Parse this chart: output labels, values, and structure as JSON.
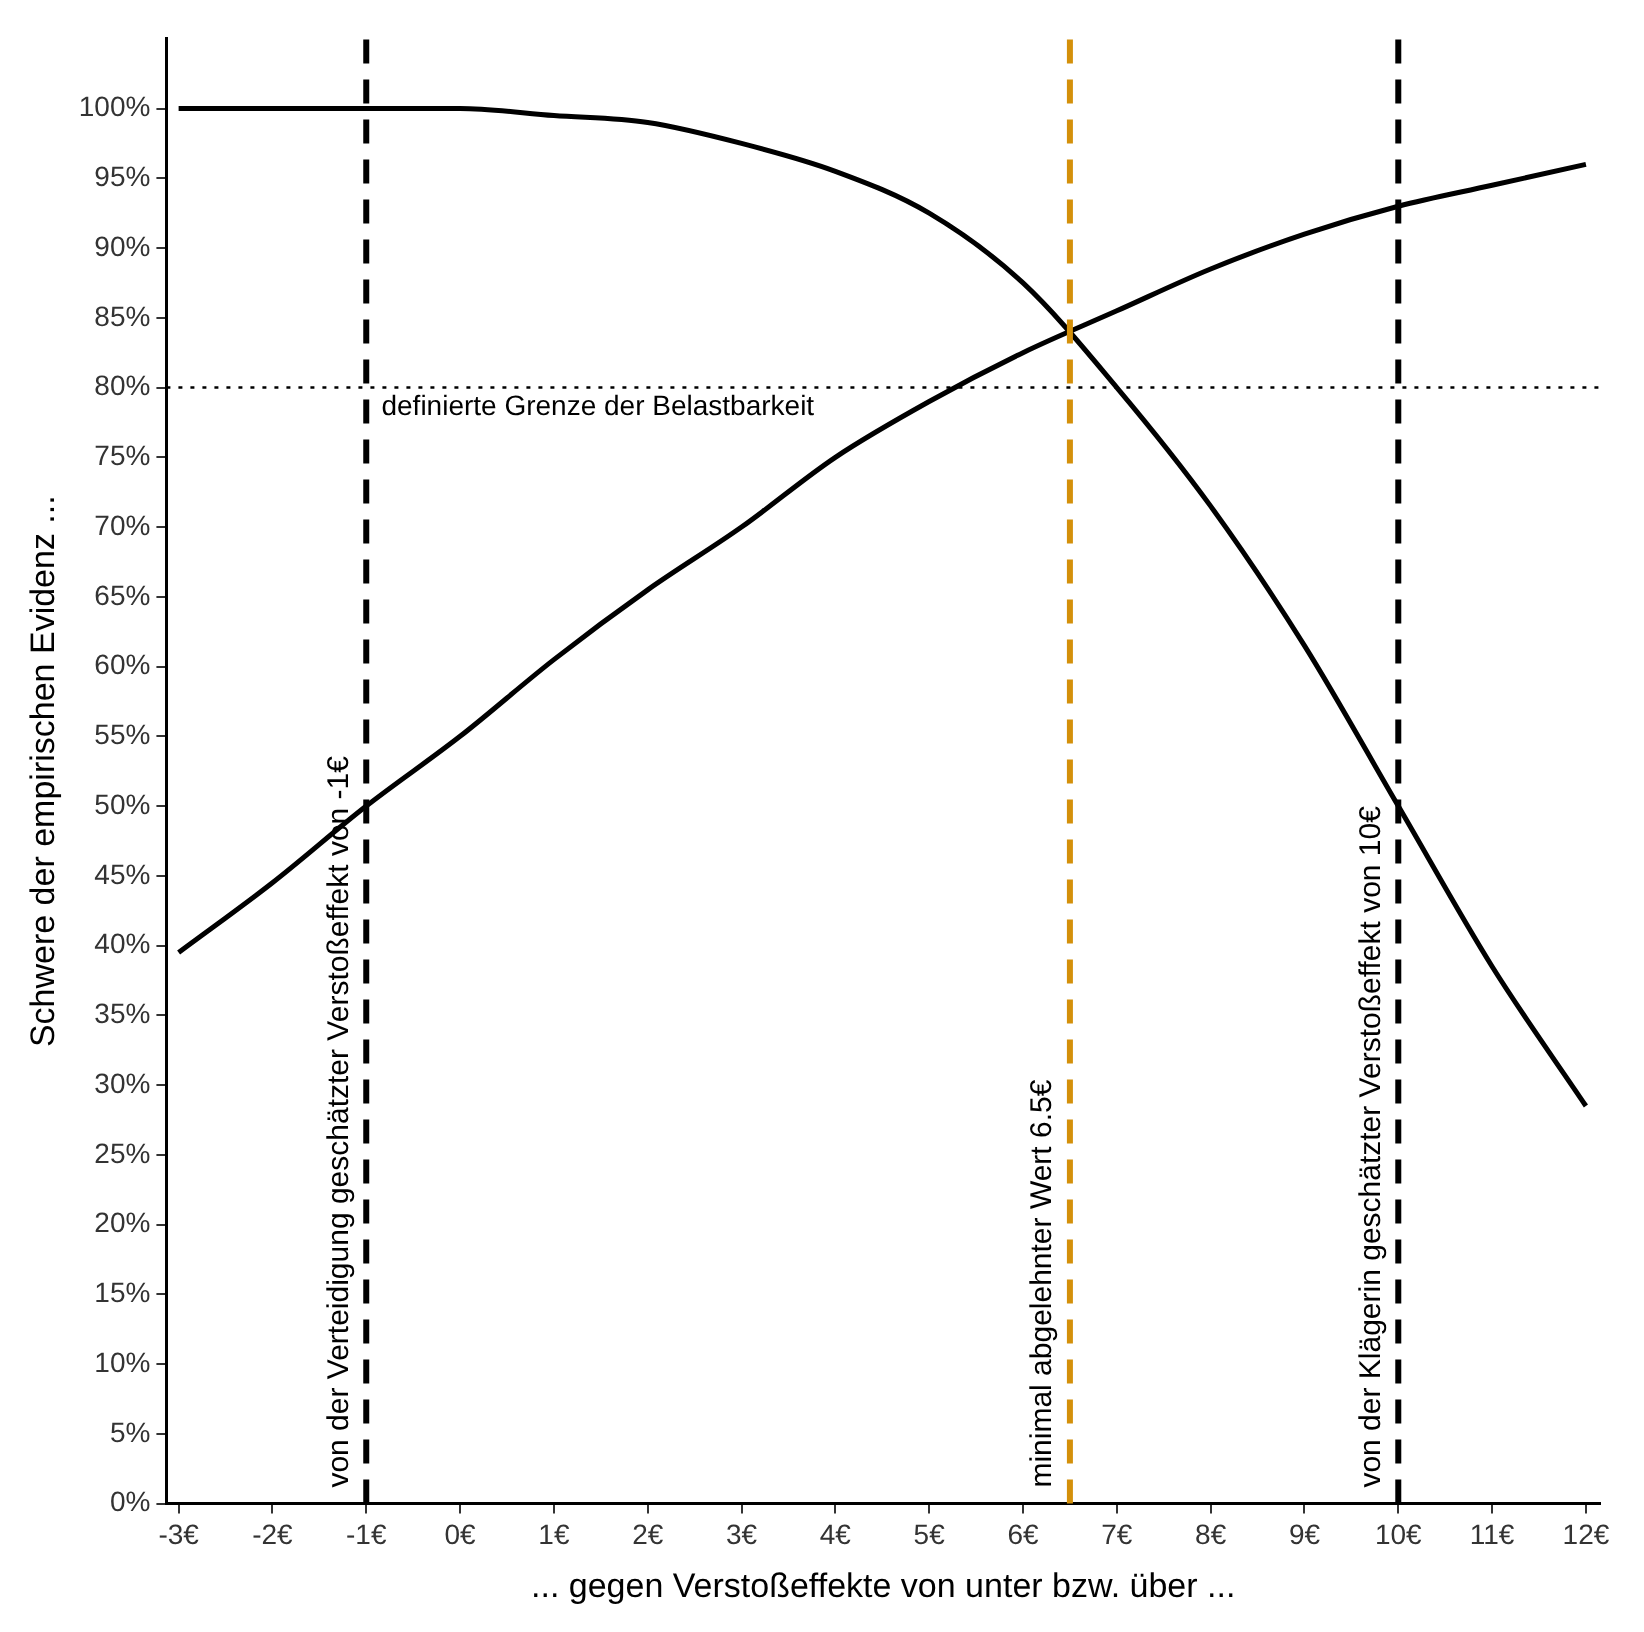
{
  "chart_data": {
    "type": "line",
    "xlabel": "... gegen Verstoßeffekte von unter bzw. über ...",
    "ylabel": "Schwere der empirischen Evidenz ...",
    "x": [
      -3,
      -2,
      -1,
      0,
      1,
      2,
      3,
      4,
      5,
      6,
      7,
      8,
      9,
      10,
      11,
      12
    ],
    "series": [
      {
        "color": "#000000",
        "values": [
          39.5,
          44.5,
          50,
          55,
          60.5,
          65.5,
          70,
          75,
          79,
          82.5,
          85.5,
          88.5,
          91,
          93,
          94.5,
          96
        ]
      },
      {
        "color": "#000000",
        "values": [
          100,
          100,
          100,
          100,
          99.5,
          99,
          97.5,
          95.5,
          92.5,
          87.5,
          80,
          71.5,
          61.5,
          50,
          38.5,
          28.5
        ]
      }
    ],
    "xlim": [
      -3.13,
      12.15
    ],
    "ylim": [
      0,
      105
    ],
    "xticks": [
      {
        "value": -3,
        "label": "-3€"
      },
      {
        "value": -2,
        "label": "-2€"
      },
      {
        "value": -1,
        "label": "-1€"
      },
      {
        "value": 0,
        "label": "0€"
      },
      {
        "value": 1,
        "label": "1€"
      },
      {
        "value": 2,
        "label": "2€"
      },
      {
        "value": 3,
        "label": "3€"
      },
      {
        "value": 4,
        "label": "4€"
      },
      {
        "value": 5,
        "label": "5€"
      },
      {
        "value": 6,
        "label": "6€"
      },
      {
        "value": 7,
        "label": "7€"
      },
      {
        "value": 8,
        "label": "8€"
      },
      {
        "value": 9,
        "label": "9€"
      },
      {
        "value": 10,
        "label": "10€"
      },
      {
        "value": 11,
        "label": "11€"
      },
      {
        "value": 12,
        "label": "12€"
      }
    ],
    "yticks": [
      {
        "value": 0,
        "label": "0%"
      },
      {
        "value": 5,
        "label": "5%"
      },
      {
        "value": 10,
        "label": "10%"
      },
      {
        "value": 15,
        "label": "15%"
      },
      {
        "value": 20,
        "label": "20%"
      },
      {
        "value": 25,
        "label": "25%"
      },
      {
        "value": 30,
        "label": "30%"
      },
      {
        "value": 35,
        "label": "35%"
      },
      {
        "value": 40,
        "label": "40%"
      },
      {
        "value": 45,
        "label": "45%"
      },
      {
        "value": 50,
        "label": "50%"
      },
      {
        "value": 55,
        "label": "55%"
      },
      {
        "value": 60,
        "label": "60%"
      },
      {
        "value": 65,
        "label": "65%"
      },
      {
        "value": 70,
        "label": "70%"
      },
      {
        "value": 75,
        "label": "75%"
      },
      {
        "value": 80,
        "label": "80%"
      },
      {
        "value": 85,
        "label": "85%"
      },
      {
        "value": 90,
        "label": "90%"
      },
      {
        "value": 95,
        "label": "95%"
      },
      {
        "value": 100,
        "label": "100%"
      }
    ],
    "ref_lines": [
      {
        "axis": "x",
        "value": -1,
        "label": "von der Verteidigung geschätzter Verstoßeffekt von -1€",
        "color": "#000000",
        "line_style": "dashed"
      },
      {
        "axis": "x",
        "value": 6.5,
        "label": "minimal abgelehnter Wert 6.5€",
        "color": "#d4900a",
        "line_style": "dashed"
      },
      {
        "axis": "x",
        "value": 10,
        "label": "von der Klägerin geschätzter Verstoßeffekt von 10€",
        "color": "#000000",
        "line_style": "dashed"
      },
      {
        "axis": "y",
        "value": 80,
        "label": "definierte Grenze der Belastbarkeit",
        "color": "#000000",
        "line_style": "dotted"
      }
    ],
    "grid": false,
    "legend": false,
    "marker": "none",
    "line_style": "solid"
  }
}
